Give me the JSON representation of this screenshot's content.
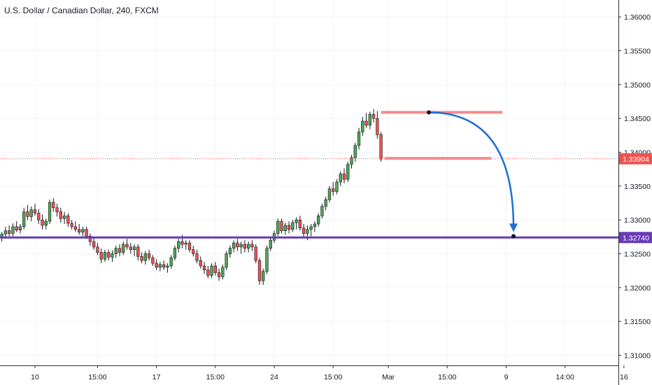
{
  "chart_data": {
    "type": "candlestick",
    "title": "U.S. Dollar / Canadian Dollar, 240, FXCM",
    "ylim": [
      1.3085,
      1.3625
    ],
    "y_ticks": [
      "1.36000",
      "1.35500",
      "1.35000",
      "1.34500",
      "1.34000",
      "1.33500",
      "1.33000",
      "1.32500",
      "1.32000",
      "1.31500",
      "1.31000"
    ],
    "y_tick_values": [
      1.36,
      1.355,
      1.35,
      1.345,
      1.34,
      1.335,
      1.33,
      1.325,
      1.32,
      1.315,
      1.31
    ],
    "x_ticks": [
      "10",
      "15:00",
      "17",
      "15:00",
      "24",
      "15:00",
      "Mar",
      "15:00",
      "9",
      "14:00",
      "16"
    ],
    "bar_count": 168,
    "x_tick_bars": [
      9,
      26,
      42,
      58,
      74,
      90,
      105,
      121,
      137,
      153,
      169
    ],
    "last_price": {
      "label": "1.33904",
      "value": 1.33904,
      "color": "#ef5350"
    },
    "support_level": {
      "label": "1.32740",
      "value": 1.3274,
      "color": "#673ab7"
    },
    "drawings": {
      "resistance_zone": {
        "price": 1.3459,
        "start_bar": 103,
        "end_bar": 136,
        "color": "#f28b8b"
      },
      "lower_zone": {
        "price": 1.3391,
        "start_bar": 104,
        "end_bar": 133,
        "color": "#f28b8b"
      },
      "arrow": {
        "start_bar": 116,
        "start_price": 1.3459,
        "end_bar": 139,
        "end_price": 1.3276,
        "color": "#1e6fd9"
      }
    },
    "candles": [
      [
        1.3274,
        1.3282,
        1.3268,
        1.3279
      ],
      [
        1.3279,
        1.329,
        1.3272,
        1.3284
      ],
      [
        1.3284,
        1.3292,
        1.3276,
        1.328
      ],
      [
        1.328,
        1.3295,
        1.3276,
        1.329
      ],
      [
        1.329,
        1.3298,
        1.3282,
        1.3285
      ],
      [
        1.3285,
        1.3294,
        1.328,
        1.329
      ],
      [
        1.329,
        1.3318,
        1.3286,
        1.3312
      ],
      [
        1.3312,
        1.3322,
        1.33,
        1.3305
      ],
      [
        1.3305,
        1.332,
        1.3298,
        1.3315
      ],
      [
        1.3315,
        1.3324,
        1.3306,
        1.331
      ],
      [
        1.331,
        1.3316,
        1.3294,
        1.33
      ],
      [
        1.33,
        1.3308,
        1.3286,
        1.3292
      ],
      [
        1.3292,
        1.3302,
        1.3286,
        1.3298
      ],
      [
        1.3298,
        1.333,
        1.3294,
        1.3326
      ],
      [
        1.3326,
        1.3332,
        1.3312,
        1.3318
      ],
      [
        1.3318,
        1.3324,
        1.3305,
        1.3312
      ],
      [
        1.3312,
        1.3318,
        1.3296,
        1.3302
      ],
      [
        1.3302,
        1.3312,
        1.3294,
        1.3306
      ],
      [
        1.3306,
        1.331,
        1.329,
        1.3295
      ],
      [
        1.3295,
        1.33,
        1.3286,
        1.329
      ],
      [
        1.329,
        1.3298,
        1.3282,
        1.3286
      ],
      [
        1.3286,
        1.3294,
        1.3278,
        1.3282
      ],
      [
        1.3282,
        1.329,
        1.3276,
        1.3286
      ],
      [
        1.3286,
        1.329,
        1.3272,
        1.3276
      ],
      [
        1.3276,
        1.328,
        1.3262,
        1.3268
      ],
      [
        1.3268,
        1.3274,
        1.3256,
        1.326
      ],
      [
        1.326,
        1.3266,
        1.3248,
        1.3252
      ],
      [
        1.3252,
        1.3258,
        1.3236,
        1.3242
      ],
      [
        1.3242,
        1.3256,
        1.3238,
        1.3252
      ],
      [
        1.3252,
        1.3256,
        1.324,
        1.3245
      ],
      [
        1.3245,
        1.3255,
        1.3238,
        1.325
      ],
      [
        1.325,
        1.3262,
        1.3244,
        1.3258
      ],
      [
        1.3258,
        1.3264,
        1.3246,
        1.3252
      ],
      [
        1.3252,
        1.3268,
        1.3248,
        1.3264
      ],
      [
        1.3264,
        1.3272,
        1.3256,
        1.326
      ],
      [
        1.326,
        1.3266,
        1.325,
        1.3256
      ],
      [
        1.3256,
        1.3264,
        1.3246,
        1.326
      ],
      [
        1.326,
        1.3264,
        1.324,
        1.3246
      ],
      [
        1.3246,
        1.3252,
        1.3236,
        1.324
      ],
      [
        1.324,
        1.3254,
        1.3234,
        1.325
      ],
      [
        1.325,
        1.3256,
        1.324,
        1.3244
      ],
      [
        1.3244,
        1.3248,
        1.3232,
        1.3236
      ],
      [
        1.3236,
        1.3242,
        1.3226,
        1.323
      ],
      [
        1.323,
        1.3238,
        1.3224,
        1.3234
      ],
      [
        1.3234,
        1.324,
        1.3226,
        1.323
      ],
      [
        1.323,
        1.3236,
        1.3222,
        1.3232
      ],
      [
        1.3232,
        1.3248,
        1.3228,
        1.3244
      ],
      [
        1.3244,
        1.3262,
        1.324,
        1.3258
      ],
      [
        1.3258,
        1.3272,
        1.3252,
        1.3268
      ],
      [
        1.3268,
        1.3278,
        1.3258,
        1.3264
      ],
      [
        1.3264,
        1.327,
        1.3256,
        1.3266
      ],
      [
        1.3266,
        1.327,
        1.3252,
        1.3256
      ],
      [
        1.3256,
        1.3262,
        1.3246,
        1.325
      ],
      [
        1.325,
        1.3256,
        1.3236,
        1.324
      ],
      [
        1.324,
        1.3246,
        1.3228,
        1.3232
      ],
      [
        1.3232,
        1.3238,
        1.322,
        1.3226
      ],
      [
        1.3226,
        1.3232,
        1.3214,
        1.3218
      ],
      [
        1.3218,
        1.3236,
        1.3214,
        1.3232
      ],
      [
        1.3232,
        1.3238,
        1.3218,
        1.3222
      ],
      [
        1.3222,
        1.3228,
        1.321,
        1.3216
      ],
      [
        1.3216,
        1.3234,
        1.3212,
        1.323
      ],
      [
        1.323,
        1.3254,
        1.3226,
        1.325
      ],
      [
        1.325,
        1.3262,
        1.3244,
        1.3258
      ],
      [
        1.3258,
        1.327,
        1.3252,
        1.3266
      ],
      [
        1.3266,
        1.3272,
        1.3254,
        1.326
      ],
      [
        1.326,
        1.3268,
        1.325,
        1.3264
      ],
      [
        1.3264,
        1.327,
        1.3252,
        1.3258
      ],
      [
        1.3258,
        1.3268,
        1.3252,
        1.3264
      ],
      [
        1.3264,
        1.327,
        1.3254,
        1.326
      ],
      [
        1.326,
        1.3264,
        1.3236,
        1.324
      ],
      [
        1.324,
        1.3244,
        1.3204,
        1.321
      ],
      [
        1.321,
        1.3228,
        1.3204,
        1.3224
      ],
      [
        1.3224,
        1.3262,
        1.322,
        1.3258
      ],
      [
        1.3258,
        1.3274,
        1.3254,
        1.327
      ],
      [
        1.327,
        1.3284,
        1.3266,
        1.328
      ],
      [
        1.328,
        1.3302,
        1.3276,
        1.3298
      ],
      [
        1.3298,
        1.3302,
        1.328,
        1.3284
      ],
      [
        1.3284,
        1.3296,
        1.3278,
        1.3292
      ],
      [
        1.3292,
        1.3298,
        1.328,
        1.3286
      ],
      [
        1.3286,
        1.33,
        1.3282,
        1.3296
      ],
      [
        1.3296,
        1.3304,
        1.3286,
        1.33
      ],
      [
        1.33,
        1.3306,
        1.3284,
        1.3288
      ],
      [
        1.3288,
        1.3294,
        1.3274,
        1.328
      ],
      [
        1.328,
        1.3292,
        1.327,
        1.3286
      ],
      [
        1.3286,
        1.3294,
        1.3276,
        1.329
      ],
      [
        1.329,
        1.3298,
        1.3282,
        1.3294
      ],
      [
        1.3294,
        1.331,
        1.329,
        1.3306
      ],
      [
        1.3306,
        1.3324,
        1.3302,
        1.332
      ],
      [
        1.332,
        1.3334,
        1.3314,
        1.333
      ],
      [
        1.333,
        1.335,
        1.3326,
        1.3346
      ],
      [
        1.3346,
        1.3356,
        1.3336,
        1.3342
      ],
      [
        1.3342,
        1.336,
        1.3338,
        1.3356
      ],
      [
        1.3356,
        1.3372,
        1.335,
        1.3368
      ],
      [
        1.3368,
        1.3376,
        1.3354,
        1.336
      ],
      [
        1.336,
        1.3386,
        1.3356,
        1.3382
      ],
      [
        1.3382,
        1.3396,
        1.3376,
        1.3392
      ],
      [
        1.3392,
        1.3414,
        1.3386,
        1.341
      ],
      [
        1.341,
        1.3436,
        1.3404,
        1.343
      ],
      [
        1.343,
        1.3452,
        1.3424,
        1.3446
      ],
      [
        1.3446,
        1.3458,
        1.3436,
        1.344
      ],
      [
        1.344,
        1.346,
        1.3434,
        1.3456
      ],
      [
        1.3456,
        1.3464,
        1.3444,
        1.345
      ],
      [
        1.345,
        1.3461,
        1.342,
        1.3426
      ],
      [
        1.3426,
        1.343,
        1.3386,
        1.339
      ]
    ]
  },
  "view": {
    "price_scale_color": "#131722",
    "grid": true,
    "up_color": "#53a653",
    "down_color": "#ef5350"
  }
}
